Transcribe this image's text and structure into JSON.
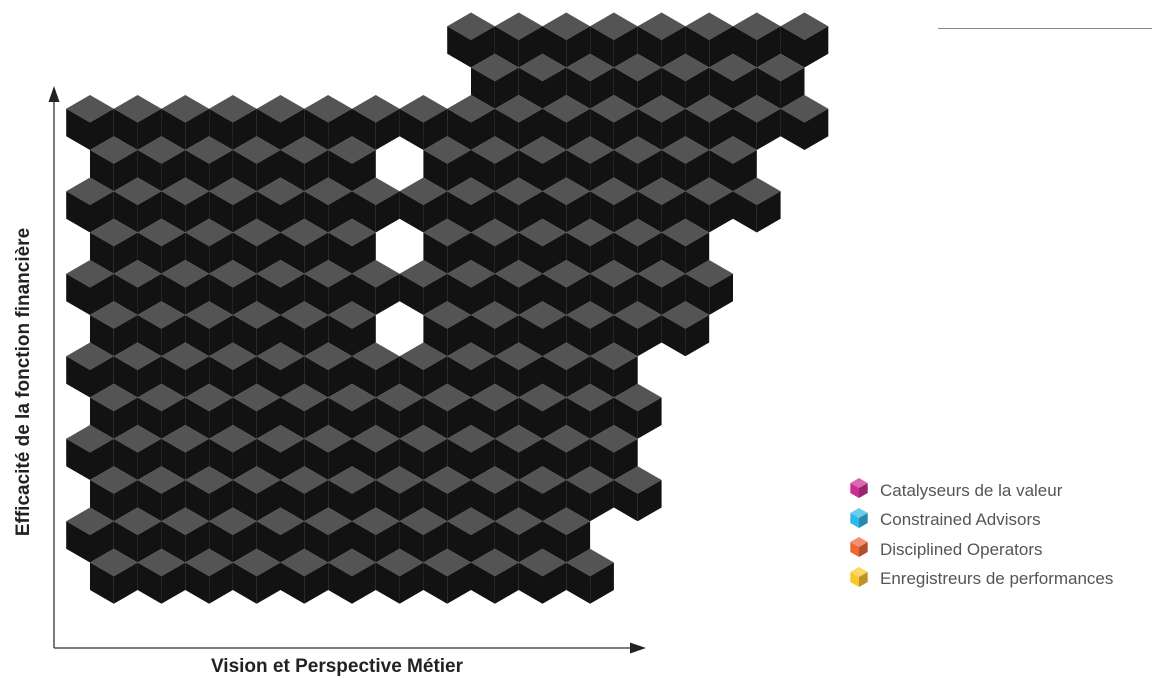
{
  "axes": {
    "y_label": "Efficacité de la fonction financière",
    "x_label": "Vision et Perspective Métier"
  },
  "legend": [
    {
      "label": "Catalyseurs de la valeur",
      "icon": "magenta-cube-icon",
      "color": "#c91c8c"
    },
    {
      "label": "Constrained Advisors",
      "icon": "blue-cube-icon",
      "color": "#1cb3e6"
    },
    {
      "label": "Disciplined Operators",
      "icon": "orange-cube-icon",
      "color": "#ee5a28"
    },
    {
      "label": "Enregistreurs de performances",
      "icon": "yellow-cube-icon",
      "color": "#fbc21a"
    }
  ]
}
